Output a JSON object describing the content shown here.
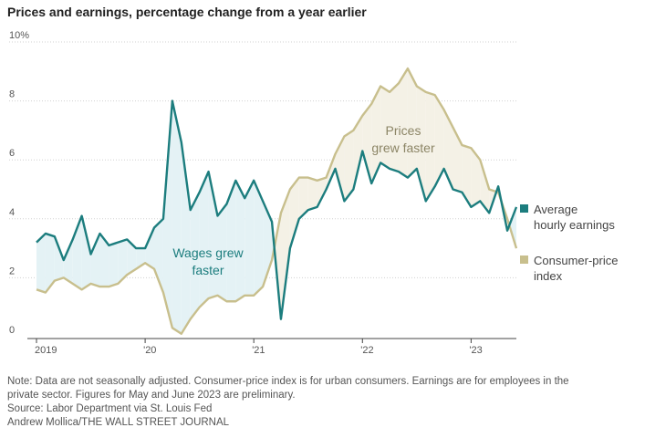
{
  "title": "Prices and earnings, percentage change from a year earlier",
  "colors": {
    "wages": "#1c7d7e",
    "prices": "#c8bf8d",
    "wage_fill": "#e4f2f5",
    "price_fill": "#f4f1e6",
    "grid": "#d0d0d0"
  },
  "chart_data": {
    "type": "line",
    "title": "Prices and earnings, percentage change from a year earlier",
    "ylim": [
      0,
      10
    ],
    "y_ticks": [
      {
        "value": 0,
        "label": "0"
      },
      {
        "value": 2,
        "label": "2"
      },
      {
        "value": 4,
        "label": "4"
      },
      {
        "value": 6,
        "label": "6"
      },
      {
        "value": 8,
        "label": "8"
      },
      {
        "value": 10,
        "label": "10%"
      }
    ],
    "x_ticks": [
      {
        "index": 0,
        "label": "2019"
      },
      {
        "index": 12,
        "label": "'20"
      },
      {
        "index": 24,
        "label": "'21"
      },
      {
        "index": 36,
        "label": "'22"
      },
      {
        "index": 48,
        "label": "'23"
      }
    ],
    "x_range": [
      0,
      53
    ],
    "start": "2019-01",
    "series": [
      {
        "name": "Average hourly earnings",
        "legend_lines": [
          "Average",
          "hourly earnings"
        ],
        "values": [
          3.2,
          3.5,
          3.4,
          2.6,
          3.3,
          4.1,
          2.8,
          3.5,
          3.1,
          3.2,
          3.3,
          3.0,
          3.0,
          3.7,
          4.0,
          8.0,
          6.6,
          4.3,
          4.9,
          5.6,
          4.1,
          4.5,
          5.3,
          4.7,
          5.3,
          4.6,
          3.9,
          0.6,
          3.0,
          4.0,
          4.3,
          4.4,
          5.0,
          5.7,
          4.6,
          5.0,
          6.3,
          5.2,
          5.9,
          5.7,
          5.6,
          5.4,
          5.7,
          4.6,
          5.1,
          5.7,
          5.0,
          4.9,
          4.4,
          4.6,
          4.2,
          5.1,
          3.6,
          4.4
        ]
      },
      {
        "name": "Consumer-price index",
        "legend_lines": [
          "Consumer-price",
          "index"
        ],
        "values": [
          1.6,
          1.5,
          1.9,
          2.0,
          1.8,
          1.6,
          1.8,
          1.7,
          1.7,
          1.8,
          2.1,
          2.3,
          2.5,
          2.3,
          1.5,
          0.3,
          0.1,
          0.6,
          1.0,
          1.3,
          1.4,
          1.2,
          1.2,
          1.4,
          1.4,
          1.7,
          2.6,
          4.2,
          5.0,
          5.4,
          5.4,
          5.3,
          5.4,
          6.2,
          6.8,
          7.0,
          7.5,
          7.9,
          8.5,
          8.3,
          8.6,
          9.1,
          8.5,
          8.3,
          8.2,
          7.7,
          7.1,
          6.5,
          6.4,
          6.0,
          5.0,
          4.9,
          4.0,
          3.0
        ]
      }
    ],
    "annotations": [
      {
        "lines": [
          "Wages grew",
          "faster"
        ]
      },
      {
        "lines": [
          "Prices",
          "grew faster"
        ]
      }
    ]
  },
  "footer": {
    "note_line1": "Note: Data are not seasonally adjusted. Consumer-price index is for urban consumers. Earnings are for employees in the",
    "note_line2": "private sector. Figures for May and June 2023 are preliminary.",
    "source": "Source: Labor Department via St. Louis Fed",
    "credit": "Andrew Mollica/THE WALL STREET JOURNAL"
  }
}
